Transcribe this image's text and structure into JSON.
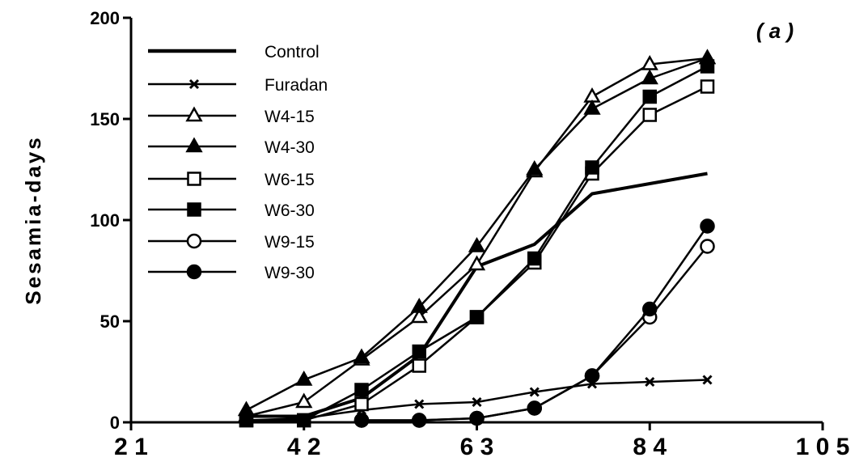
{
  "chart_data": {
    "type": "line",
    "title": "",
    "panel_label": "( a )",
    "ylabel": "Sesamia-days",
    "xlabel": "",
    "xlim": [
      21,
      105
    ],
    "ylim": [
      0,
      200
    ],
    "x_ticks": [
      21,
      42,
      63,
      84,
      105
    ],
    "x_tick_labels": [
      "2 1",
      "4 2",
      "6 3",
      "8 4",
      "1 0 5"
    ],
    "y_ticks": [
      0,
      50,
      100,
      150,
      200
    ],
    "y_tick_labels": [
      "0",
      "50",
      "100",
      "150",
      "200"
    ],
    "grid": false,
    "legend_position": "top-left",
    "series": [
      {
        "name": "Control",
        "marker": "none",
        "x": [
          35,
          42,
          49,
          56,
          63,
          70,
          77,
          84,
          91
        ],
        "y": [
          3,
          3,
          12,
          33,
          77,
          88,
          113,
          118,
          123
        ]
      },
      {
        "name": "Furadan",
        "marker": "x",
        "x": [
          35,
          42,
          49,
          56,
          63,
          70,
          77,
          84,
          91
        ],
        "y": [
          1,
          2,
          6,
          9,
          10,
          15,
          19,
          20,
          21
        ]
      },
      {
        "name": "W4-15",
        "marker": "triangle-open",
        "x": [
          35,
          42,
          49,
          56,
          63,
          70,
          77,
          84,
          91
        ],
        "y": [
          3,
          10,
          31,
          52,
          78,
          124,
          161,
          177,
          180
        ]
      },
      {
        "name": "W4-30",
        "marker": "triangle-filled",
        "x": [
          35,
          42,
          49,
          56,
          63,
          70,
          77,
          84,
          91
        ],
        "y": [
          6,
          21,
          32,
          57,
          87,
          125,
          155,
          170,
          180
        ]
      },
      {
        "name": "W6-15",
        "marker": "square-open",
        "x": [
          35,
          42,
          49,
          56,
          63,
          70,
          77,
          84,
          91
        ],
        "y": [
          1,
          1,
          9,
          28,
          52,
          79,
          123,
          152,
          166
        ]
      },
      {
        "name": "W6-30",
        "marker": "square-filled",
        "x": [
          35,
          42,
          49,
          56,
          63,
          70,
          77,
          84,
          91
        ],
        "y": [
          1,
          1,
          16,
          35,
          52,
          81,
          126,
          161,
          176
        ]
      },
      {
        "name": "W9-15",
        "marker": "circle-open",
        "x": [
          49,
          56,
          63,
          70,
          77,
          84,
          91
        ],
        "y": [
          1,
          1,
          2,
          7,
          23,
          52,
          87
        ]
      },
      {
        "name": "W9-30",
        "marker": "circle-filled",
        "x": [
          49,
          56,
          63,
          70,
          77,
          84,
          91
        ],
        "y": [
          1,
          1,
          2,
          7,
          23,
          56,
          97
        ]
      }
    ]
  }
}
